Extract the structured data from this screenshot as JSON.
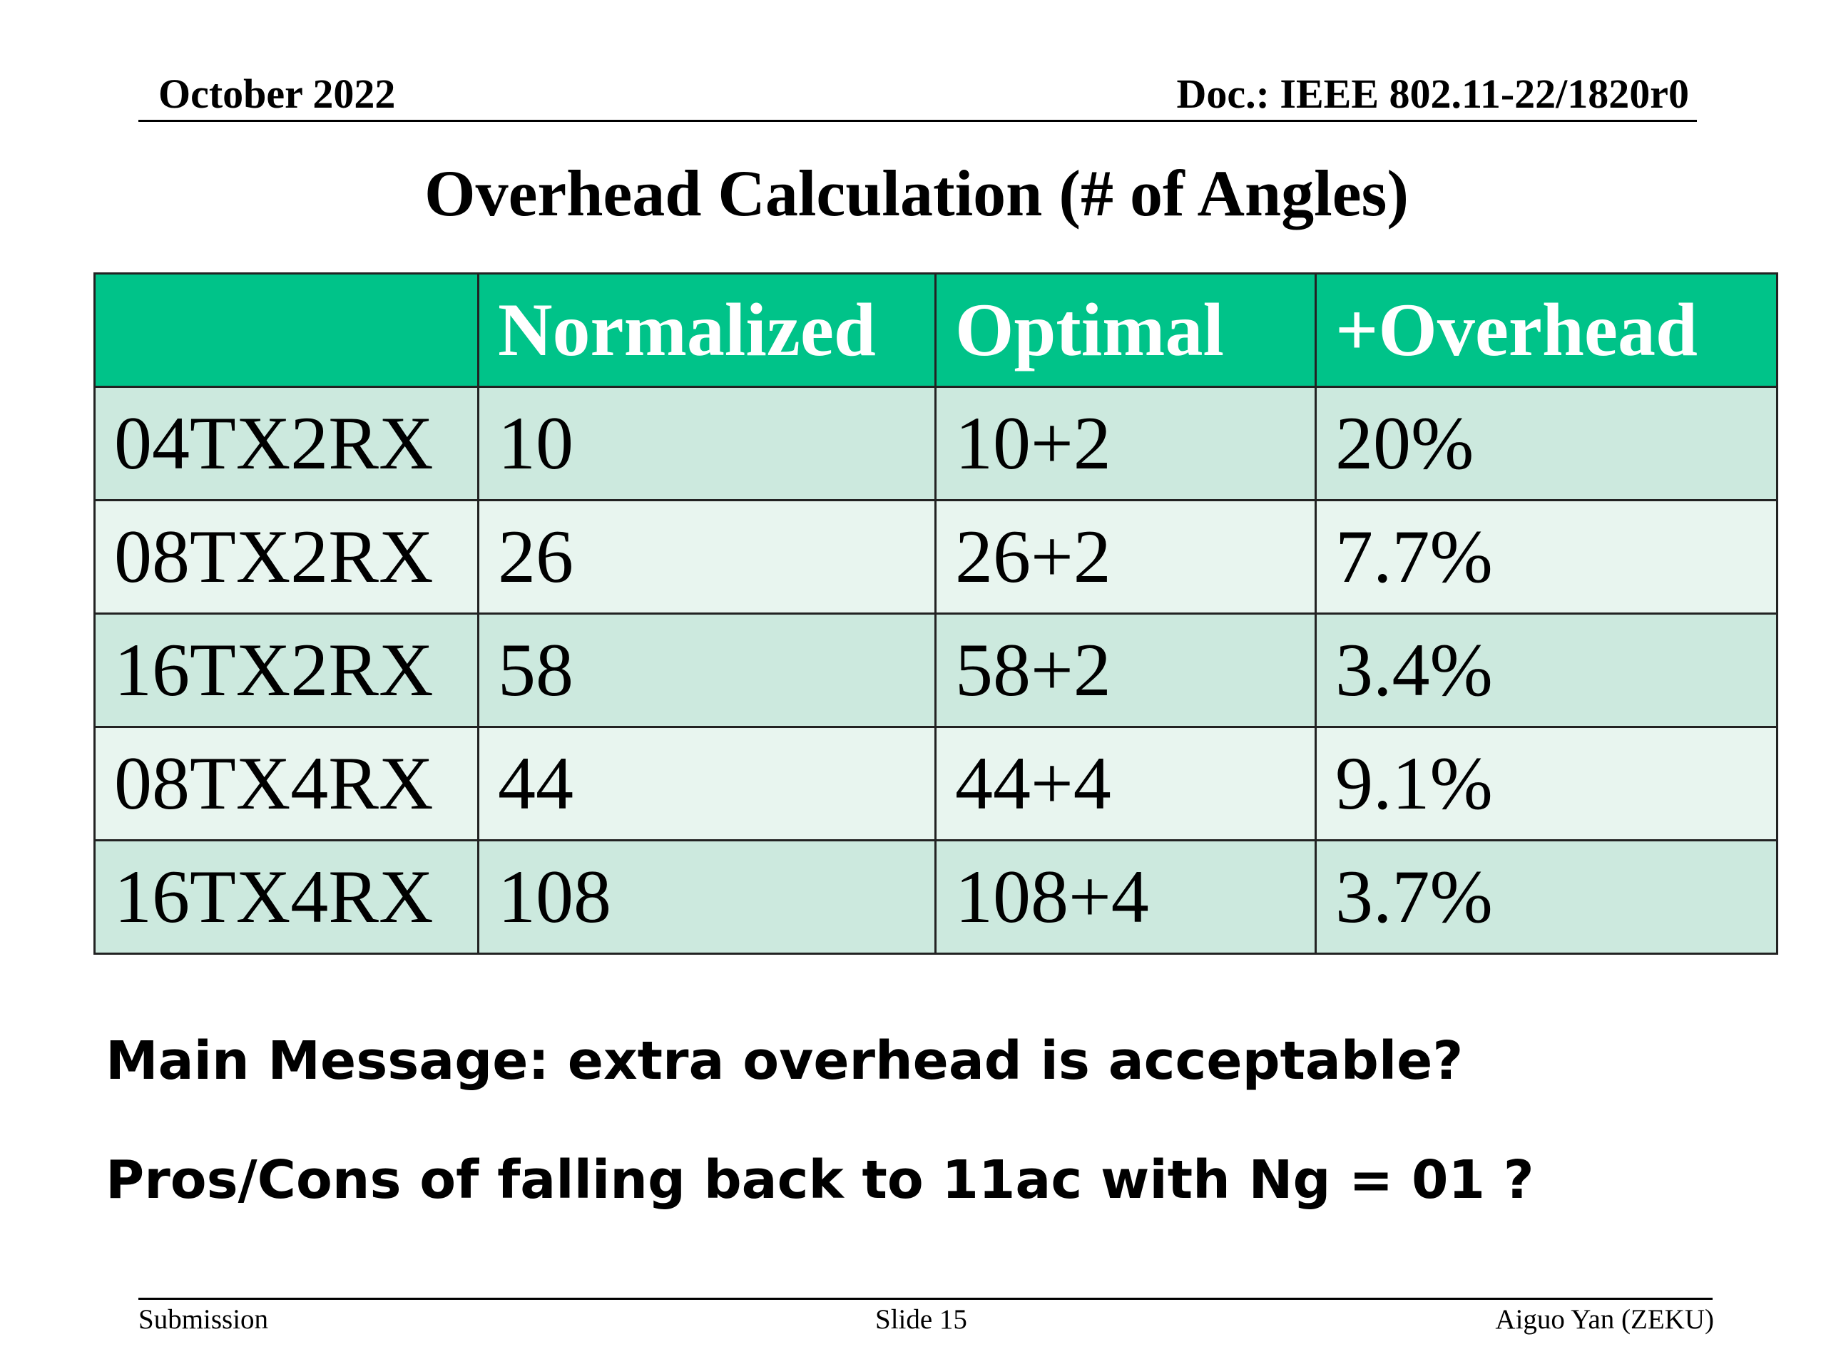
{
  "header": {
    "date": "October 2022",
    "doc": "Doc.: IEEE 802.11-22/1820r0"
  },
  "title": "Overhead Calculation (# of Angles)",
  "table": {
    "columns": [
      "Normalized",
      "Optimal",
      "+Overhead"
    ],
    "rows": [
      [
        "04TX2RX",
        "10",
        "10+2",
        "20%"
      ],
      [
        "08TX2RX",
        "26",
        "26+2",
        "7.7%"
      ],
      [
        "16TX2RX",
        "58",
        "58+2",
        "3.4%"
      ],
      [
        "08TX4RX",
        "44",
        "44+4",
        "9.1%"
      ],
      [
        "16TX4RX",
        "108",
        "108+4",
        "3.7%"
      ]
    ]
  },
  "messages": [
    "Main Message: extra overhead is acceptable?",
    "Pros/Cons of falling back to 11ac with Ng = 01 ?"
  ],
  "footer": {
    "left": "Submission",
    "center": "Slide 15",
    "right": "Aiguo Yan (ZEKU)"
  }
}
